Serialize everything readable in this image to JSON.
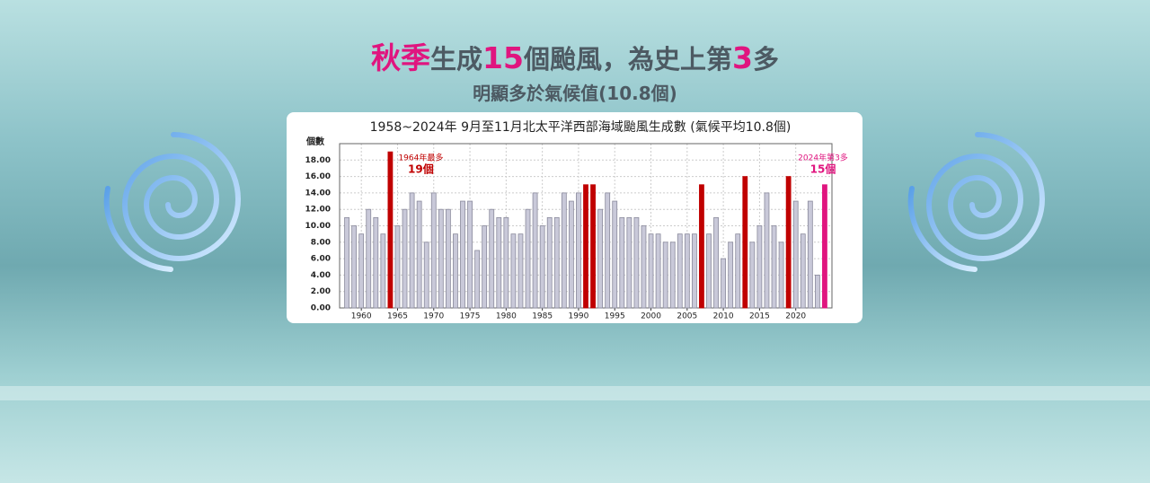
{
  "header": {
    "title_parts": [
      {
        "text": "秋季",
        "color": "#e0157f"
      },
      {
        "text": "生成",
        "color": "#4d5a63"
      },
      {
        "text": "15",
        "color": "#e0157f"
      },
      {
        "text": "個颱風，為史上第",
        "color": "#4d5a63"
      },
      {
        "text": "3",
        "color": "#e0157f"
      },
      {
        "text": "多",
        "color": "#4d5a63"
      }
    ],
    "subtitle": "明顯多於氣候值(10.8個)"
  },
  "chart_data": {
    "type": "bar",
    "title": "1958~2024年 9月至11月北太平洋西部海域颱風生成數 (氣候平均10.8個)",
    "y_label": "個數",
    "x": [
      1958,
      1959,
      1960,
      1961,
      1962,
      1963,
      1964,
      1965,
      1966,
      1967,
      1968,
      1969,
      1970,
      1971,
      1972,
      1973,
      1974,
      1975,
      1976,
      1977,
      1978,
      1979,
      1980,
      1981,
      1982,
      1983,
      1984,
      1985,
      1986,
      1987,
      1988,
      1989,
      1990,
      1991,
      1992,
      1993,
      1994,
      1995,
      1996,
      1997,
      1998,
      1999,
      2000,
      2001,
      2002,
      2003,
      2004,
      2005,
      2006,
      2007,
      2008,
      2009,
      2010,
      2011,
      2012,
      2013,
      2014,
      2015,
      2016,
      2017,
      2018,
      2019,
      2020,
      2021,
      2022,
      2023,
      2024
    ],
    "values": [
      11,
      10,
      9,
      12,
      11,
      9,
      19,
      10,
      12,
      14,
      13,
      8,
      14,
      12,
      12,
      9,
      13,
      13,
      7,
      10,
      12,
      11,
      11,
      9,
      9,
      12,
      14,
      10,
      11,
      11,
      14,
      13,
      14,
      15,
      15,
      12,
      14,
      13,
      11,
      11,
      11,
      10,
      9,
      9,
      8,
      8,
      9,
      9,
      9,
      15,
      9,
      11,
      6,
      8,
      9,
      16,
      8,
      10,
      14,
      10,
      8,
      16,
      13,
      9,
      13,
      4,
      15
    ],
    "colors": [
      "#c9c9d9",
      "#c9c9d9",
      "#c9c9d9",
      "#c9c9d9",
      "#c9c9d9",
      "#c9c9d9",
      "#c00000",
      "#c9c9d9",
      "#c9c9d9",
      "#c9c9d9",
      "#c9c9d9",
      "#c9c9d9",
      "#c9c9d9",
      "#c9c9d9",
      "#c9c9d9",
      "#c9c9d9",
      "#c9c9d9",
      "#c9c9d9",
      "#c9c9d9",
      "#c9c9d9",
      "#c9c9d9",
      "#c9c9d9",
      "#c9c9d9",
      "#c9c9d9",
      "#c9c9d9",
      "#c9c9d9",
      "#c9c9d9",
      "#c9c9d9",
      "#c9c9d9",
      "#c9c9d9",
      "#c9c9d9",
      "#c9c9d9",
      "#c9c9d9",
      "#c00000",
      "#c00000",
      "#c9c9d9",
      "#c9c9d9",
      "#c9c9d9",
      "#c9c9d9",
      "#c9c9d9",
      "#c9c9d9",
      "#c9c9d9",
      "#c9c9d9",
      "#c9c9d9",
      "#c9c9d9",
      "#c9c9d9",
      "#c9c9d9",
      "#c9c9d9",
      "#c9c9d9",
      "#c00000",
      "#c9c9d9",
      "#c9c9d9",
      "#c9c9d9",
      "#c9c9d9",
      "#c9c9d9",
      "#c00000",
      "#c9c9d9",
      "#c9c9d9",
      "#c9c9d9",
      "#c9c9d9",
      "#c9c9d9",
      "#c00000",
      "#c9c9d9",
      "#c9c9d9",
      "#c9c9d9",
      "#c9c9d9",
      "#e0157f"
    ],
    "xlim": [
      1957,
      2025
    ],
    "xticks": [
      1960,
      1965,
      1970,
      1975,
      1980,
      1985,
      1990,
      1995,
      2000,
      2005,
      2010,
      2015,
      2020
    ],
    "ylim": [
      0,
      20
    ],
    "yticks": [
      {
        "value": 0,
        "label": "0.00"
      },
      {
        "value": 2,
        "label": "2.00"
      },
      {
        "value": 4,
        "label": "4.00"
      },
      {
        "value": 6,
        "label": "6.00"
      },
      {
        "value": 8,
        "label": "8.00"
      },
      {
        "value": 10,
        "label": "10.00"
      },
      {
        "value": 12,
        "label": "12.00"
      },
      {
        "value": 14,
        "label": "14.00"
      },
      {
        "value": 16,
        "label": "16.00"
      },
      {
        "value": 18,
        "label": "18.00"
      }
    ],
    "grid": true,
    "annotations": [
      {
        "x": 1964,
        "text": "1964年最多",
        "value_label": "19個",
        "color": "#c00000"
      },
      {
        "x": 2024,
        "text": "2024年第3多",
        "value_label": "15個",
        "color": "#e0157f"
      }
    ]
  }
}
